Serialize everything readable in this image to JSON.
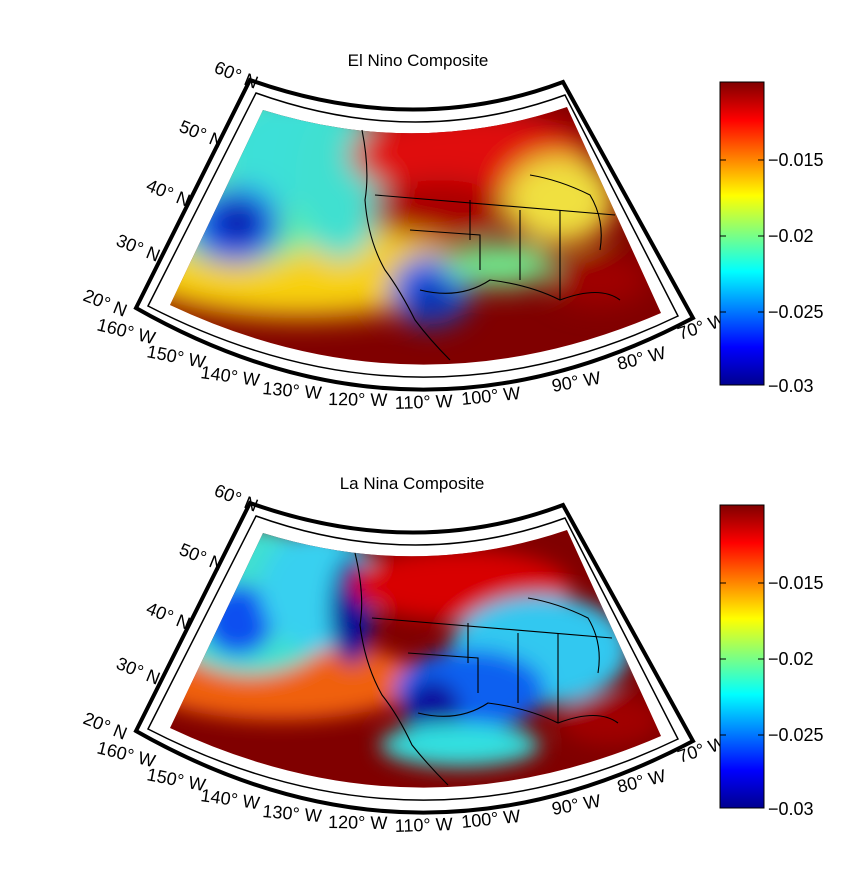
{
  "panels": [
    {
      "title": "El Nino Composite",
      "lat_labels": [
        "60° N",
        "50° N",
        "40° N",
        "30° N",
        "20° N"
      ],
      "lon_labels": [
        "160° W",
        "150° W",
        "140° W",
        "130° W",
        "120° W",
        "110° W",
        "100° W",
        "90° W",
        "80° W",
        "70° W"
      ],
      "colorbar_ticks": [
        "−0.015",
        "−0.02",
        "−0.025",
        "−0.03"
      ]
    },
    {
      "title": "La Nina Composite",
      "lat_labels": [
        "60° N",
        "50° N",
        "40° N",
        "30° N",
        "20° N"
      ],
      "lon_labels": [
        "160° W",
        "150° W",
        "140° W",
        "130° W",
        "120° W",
        "110° W",
        "100° W",
        "90° W",
        "80° W",
        "70° W"
      ],
      "colorbar_ticks": [
        "−0.015",
        "−0.02",
        "−0.025",
        "−0.03"
      ]
    }
  ],
  "colormap": "jet",
  "colors": {
    "dark_red": "#800000",
    "red": "#e01010",
    "orange": "#ff8c00",
    "yellow": "#f5f000",
    "green": "#7cf07c",
    "cyan": "#10d8f0",
    "blue": "#1c60f0",
    "dark_blue": "#0a0a8c"
  }
}
